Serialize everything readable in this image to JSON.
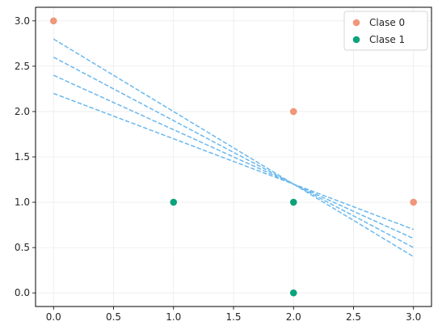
{
  "chart_data": {
    "type": "scatter",
    "title": "",
    "xlabel": "",
    "ylabel": "",
    "xlim": [
      -0.15,
      3.15
    ],
    "ylim": [
      -0.15,
      3.15
    ],
    "x_ticks": [
      0.0,
      0.5,
      1.0,
      1.5,
      2.0,
      2.5,
      3.0
    ],
    "x_tick_labels": [
      "0.0",
      "0.5",
      "1.0",
      "1.5",
      "2.0",
      "2.5",
      "3.0"
    ],
    "y_ticks": [
      0.0,
      0.5,
      1.0,
      1.5,
      2.0,
      2.5,
      3.0
    ],
    "y_tick_labels": [
      "0.0",
      "0.5",
      "1.0",
      "1.5",
      "2.0",
      "2.5",
      "3.0"
    ],
    "grid": true,
    "legend_position": "top-right",
    "series": [
      {
        "name": "Clase 0",
        "color": "#f0967a",
        "points": [
          [
            0,
            3
          ],
          [
            2,
            2
          ],
          [
            3,
            1
          ]
        ]
      },
      {
        "name": "Clase 1",
        "color": "#0aa37a",
        "points": [
          [
            1,
            1
          ],
          [
            2,
            1
          ],
          [
            2,
            0
          ]
        ]
      }
    ],
    "lines": {
      "style": "dashed",
      "color": "#6ab8ee",
      "items": [
        {
          "x": [
            0,
            3
          ],
          "y": [
            2.8,
            0.4
          ]
        },
        {
          "x": [
            0,
            3
          ],
          "y": [
            2.6,
            0.5
          ]
        },
        {
          "x": [
            0,
            3
          ],
          "y": [
            2.4,
            0.6
          ]
        },
        {
          "x": [
            0,
            3
          ],
          "y": [
            2.2,
            0.7
          ]
        }
      ]
    }
  }
}
